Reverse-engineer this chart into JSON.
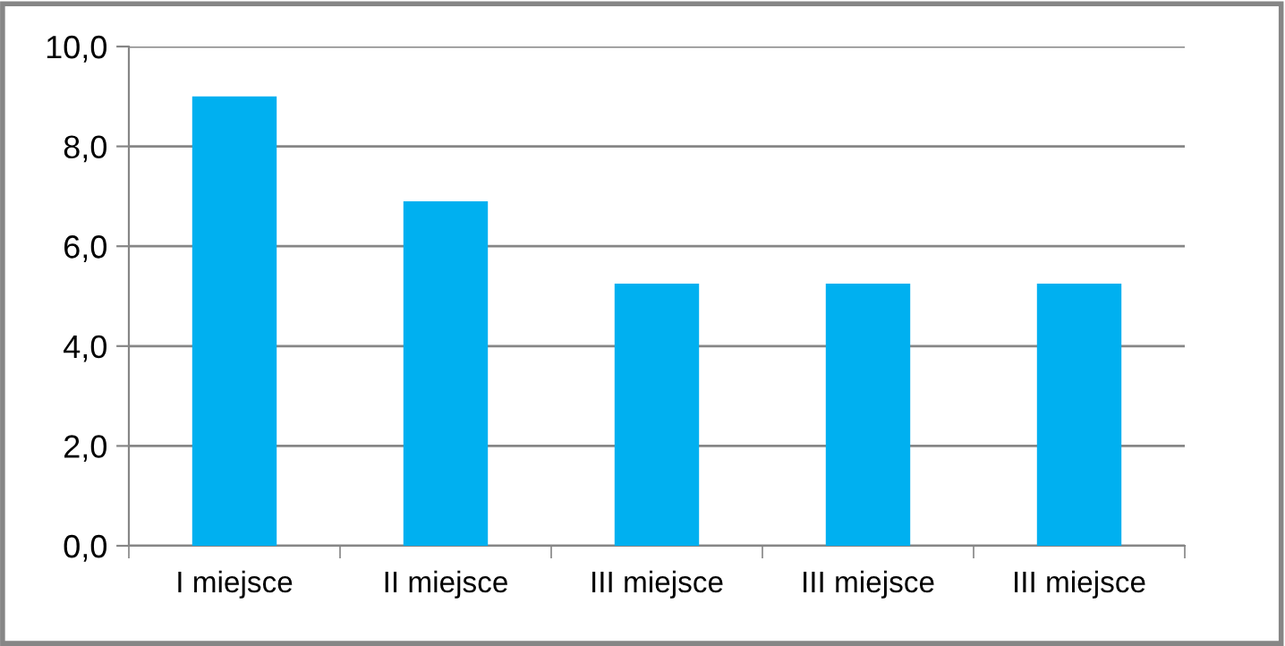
{
  "chart_data": {
    "type": "bar",
    "categories": [
      "I miejsce",
      "II miejsce",
      "III miejsce",
      "III miejsce",
      "III miejsce"
    ],
    "values": [
      9.0,
      6.9,
      5.25,
      5.25,
      5.25
    ],
    "color": "#00b0f0",
    "ylim": [
      0,
      10
    ],
    "yticks": [
      {
        "value": 0,
        "label": "0,0"
      },
      {
        "value": 2,
        "label": "2,0"
      },
      {
        "value": 4,
        "label": "4,0"
      },
      {
        "value": 6,
        "label": "6,0"
      },
      {
        "value": 8,
        "label": "8,0"
      },
      {
        "value": 10,
        "label": "10,0"
      }
    ],
    "grid": "y",
    "legend": false
  }
}
